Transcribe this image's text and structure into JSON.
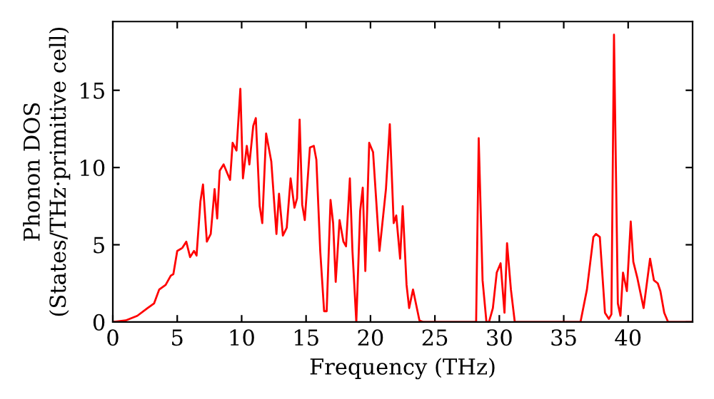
{
  "chart_data": {
    "type": "line",
    "xlabel": "Frequency (THz)",
    "ylabel": "Phonon DOS\n(States/THz·primitive cell)",
    "xlim": [
      0,
      45
    ],
    "ylim": [
      0,
      19.45
    ],
    "xticks": [
      0,
      5,
      10,
      15,
      20,
      25,
      30,
      35,
      40
    ],
    "yticks": [
      0,
      5,
      10,
      15
    ],
    "grid": false,
    "legend": false,
    "marker": "none",
    "line_style": "solid",
    "series": [
      {
        "color": "#ff0000",
        "x": [
          0,
          1.0,
          1.9,
          2.7,
          3.2,
          3.6,
          4.1,
          4.5,
          4.7,
          5.0,
          5.4,
          5.7,
          6.0,
          6.3,
          6.5,
          6.8,
          7.0,
          7.3,
          7.6,
          7.9,
          8.1,
          8.3,
          8.6,
          9.1,
          9.3,
          9.6,
          9.9,
          10.1,
          10.4,
          10.6,
          10.9,
          11.1,
          11.4,
          11.6,
          11.9,
          12.3,
          12.7,
          12.9,
          13.2,
          13.5,
          13.8,
          14.1,
          14.3,
          14.5,
          14.7,
          14.9,
          15.3,
          15.6,
          15.8,
          16.1,
          16.4,
          16.6,
          16.9,
          17.1,
          17.3,
          17.6,
          17.9,
          18.1,
          18.4,
          18.6,
          18.9,
          19.2,
          19.4,
          19.6,
          19.9,
          20.2,
          20.7,
          21.2,
          21.5,
          21.8,
          22.0,
          22.3,
          22.5,
          22.8,
          23.0,
          23.3,
          23.5,
          23.8,
          24.1,
          28.2,
          28.4,
          28.7,
          29.0,
          29.2,
          29.5,
          29.8,
          30.1,
          30.4,
          30.6,
          30.9,
          31.2,
          36.3,
          36.8,
          37.3,
          37.5,
          37.8,
          38.2,
          38.5,
          38.7,
          38.9,
          39.2,
          39.4,
          39.6,
          39.9,
          40.2,
          40.4,
          40.7,
          41.2,
          41.7,
          42.0,
          42.3,
          42.5,
          42.8,
          43.1,
          45.0
        ],
        "values": [
          0,
          0.1,
          0.4,
          0.9,
          1.2,
          2.1,
          2.4,
          3.0,
          3.1,
          4.6,
          4.8,
          5.2,
          4.2,
          4.6,
          4.3,
          7.8,
          8.9,
          5.2,
          5.7,
          8.6,
          6.7,
          9.8,
          10.2,
          9.2,
          11.6,
          11.1,
          15.1,
          9.3,
          11.4,
          10.2,
          12.7,
          13.2,
          7.5,
          6.4,
          12.2,
          10.4,
          5.7,
          8.3,
          5.6,
          6.1,
          9.3,
          7.4,
          8.0,
          13.1,
          7.6,
          6.6,
          11.3,
          11.4,
          10.5,
          4.6,
          0.7,
          0.7,
          7.9,
          6.4,
          2.6,
          6.6,
          5.2,
          4.9,
          9.3,
          4.6,
          0,
          7.2,
          8.7,
          3.3,
          11.6,
          11.0,
          4.6,
          8.6,
          12.8,
          6.4,
          6.9,
          4.1,
          7.5,
          2.4,
          0.9,
          2.1,
          1.3,
          0.1,
          0,
          0,
          11.9,
          2.7,
          0,
          0,
          0.9,
          3.2,
          3.8,
          0.6,
          5.1,
          2.1,
          0,
          0,
          2.1,
          5.5,
          5.7,
          5.5,
          0.6,
          0.2,
          0.5,
          18.6,
          1.2,
          0.4,
          3.2,
          2.0,
          6.5,
          3.9,
          2.9,
          0.9,
          4.1,
          2.7,
          2.5,
          2.0,
          0.6,
          0,
          0
        ]
      }
    ]
  }
}
